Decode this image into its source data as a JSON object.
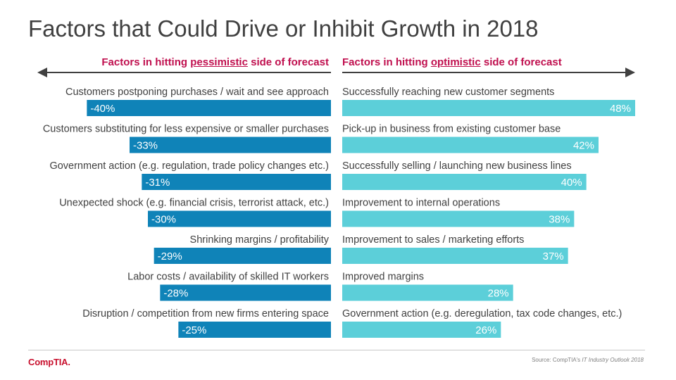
{
  "title": "Factors that Could Drive or Inhibit Growth in 2018",
  "headers": {
    "left_prefix": "Factors in hitting ",
    "left_emphasis": "pessimistic",
    "left_suffix": " side of forecast",
    "right_prefix": "Factors in hitting ",
    "right_emphasis": "optimistic",
    "right_suffix": " side of forecast"
  },
  "footer": {
    "logo": "CompTIA.",
    "source_prefix": "Source: CompTIA's ",
    "source_title": "IT Industry Outlook 2018"
  },
  "colors": {
    "negative_bar": "#0f83b8",
    "positive_bar": "#5ccfd9",
    "header_text": "#c0104f",
    "label_text": "#404040"
  },
  "chart_data": [
    {
      "type": "bar",
      "orientation": "horizontal",
      "direction": "leftward",
      "categories": [
        "Customers postponing purchases / wait and see approach",
        "Customers substituting for less expensive or smaller purchases",
        "Government action (e.g. regulation, trade policy changes etc.)",
        "Unexpected shock (e.g. financial crisis, terrorist attack, etc.)",
        "Shrinking margins / profitability",
        "Labor costs / availability of skilled IT workers",
        "Disruption / competition from new firms entering space"
      ],
      "values": [
        -40,
        -33,
        -31,
        -30,
        -29,
        -28,
        -25
      ],
      "value_labels": [
        "-40%",
        "-33%",
        "-31%",
        "-30%",
        "-29%",
        "-28%",
        "-25%"
      ],
      "unit": "%",
      "xlim": [
        -40,
        0
      ]
    },
    {
      "type": "bar",
      "orientation": "horizontal",
      "direction": "rightward",
      "categories": [
        "Successfully reaching new customer segments",
        "Pick-up in business from existing customer base",
        "Successfully selling / launching new business lines",
        "Improvement to internal operations",
        "Improvement to sales / marketing efforts",
        "Improved margins",
        "Government action (e.g. deregulation, tax code changes, etc.)"
      ],
      "values": [
        48,
        42,
        40,
        38,
        37,
        28,
        26
      ],
      "value_labels": [
        "48%",
        "42%",
        "40%",
        "38%",
        "37%",
        "28%",
        "26%"
      ],
      "unit": "%",
      "xlim": [
        0,
        48
      ]
    }
  ]
}
